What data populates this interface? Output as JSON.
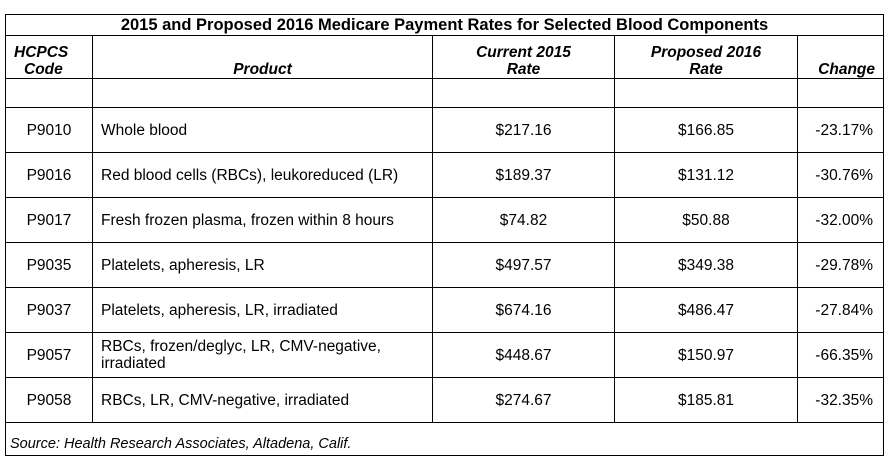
{
  "title": "2015 and Proposed 2016 Medicare Payment Rates for Selected Blood Components",
  "headers": {
    "code_line1": "HCPCS",
    "code_line2": "Code",
    "product": "Product",
    "current_line1": "Current 2015",
    "current_line2": "Rate",
    "proposed_line1": "Proposed 2016",
    "proposed_line2": "Rate",
    "change": "Change"
  },
  "rows": [
    {
      "code": "P9010",
      "product": "Whole blood",
      "current": "$217.16",
      "proposed": "$166.85",
      "change": "-23.17%"
    },
    {
      "code": "P9016",
      "product": "Red blood cells (RBCs), leukoreduced (LR)",
      "current": "$189.37",
      "proposed": "$131.12",
      "change": "-30.76%"
    },
    {
      "code": "P9017",
      "product": "Fresh frozen plasma, frozen within 8 hours",
      "current": "$74.82",
      "proposed": "$50.88",
      "change": "-32.00%"
    },
    {
      "code": "P9035",
      "product": "Platelets, apheresis, LR",
      "current": "$497.57",
      "proposed": "$349.38",
      "change": "-29.78%"
    },
    {
      "code": "P9037",
      "product": "Platelets, apheresis, LR, irradiated",
      "current": "$674.16",
      "proposed": "$486.47",
      "change": "-27.84%"
    },
    {
      "code": "P9057",
      "product": "RBCs, frozen/deglyc, LR, CMV-negative, irradiated",
      "current": "$448.67",
      "proposed": "$150.97",
      "change": "-66.35%"
    },
    {
      "code": "P9058",
      "product": "RBCs, LR, CMV-negative, irradiated",
      "current": "$274.67",
      "proposed": "$185.81",
      "change": "-32.35%"
    }
  ],
  "source": "Source: Health Research Associates, Altadena, Calif."
}
